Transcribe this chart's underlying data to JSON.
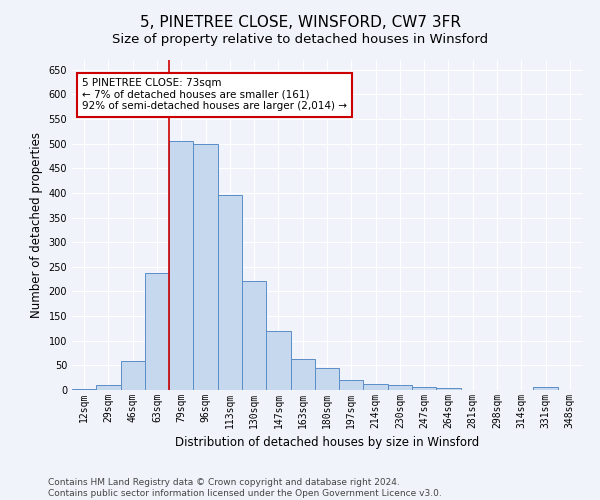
{
  "title": "5, PINETREE CLOSE, WINSFORD, CW7 3FR",
  "subtitle": "Size of property relative to detached houses in Winsford",
  "xlabel": "Distribution of detached houses by size in Winsford",
  "ylabel": "Number of detached properties",
  "categories": [
    "12sqm",
    "29sqm",
    "46sqm",
    "63sqm",
    "79sqm",
    "96sqm",
    "113sqm",
    "130sqm",
    "147sqm",
    "163sqm",
    "180sqm",
    "197sqm",
    "214sqm",
    "230sqm",
    "247sqm",
    "264sqm",
    "281sqm",
    "298sqm",
    "314sqm",
    "331sqm",
    "348sqm"
  ],
  "values": [
    3,
    10,
    58,
    237,
    505,
    500,
    395,
    222,
    120,
    62,
    45,
    20,
    12,
    10,
    6,
    5,
    0,
    0,
    0,
    6,
    0
  ],
  "bar_color": "#c5d8ee",
  "bar_edge_color": "#5b8dc8",
  "vline_color": "#cc0000",
  "annotation_text": "5 PINETREE CLOSE: 73sqm\n← 7% of detached houses are smaller (161)\n92% of semi-detached houses are larger (2,014) →",
  "annotation_box_color": "white",
  "annotation_box_edge_color": "#cc0000",
  "ylim": [
    0,
    670
  ],
  "yticks": [
    0,
    50,
    100,
    150,
    200,
    250,
    300,
    350,
    400,
    450,
    500,
    550,
    600,
    650
  ],
  "footer_line1": "Contains HM Land Registry data © Crown copyright and database right 2024.",
  "footer_line2": "Contains public sector information licensed under the Open Government Licence v3.0.",
  "bg_color": "#f0f4fa",
  "plot_bg_color": "#f0f4fa",
  "title_fontsize": 11,
  "subtitle_fontsize": 9.5,
  "axis_label_fontsize": 8.5,
  "tick_fontsize": 7,
  "footer_fontsize": 6.5,
  "grid_color": "#ffffff",
  "annotation_fontsize": 7.5,
  "vline_x_index": 3.5
}
